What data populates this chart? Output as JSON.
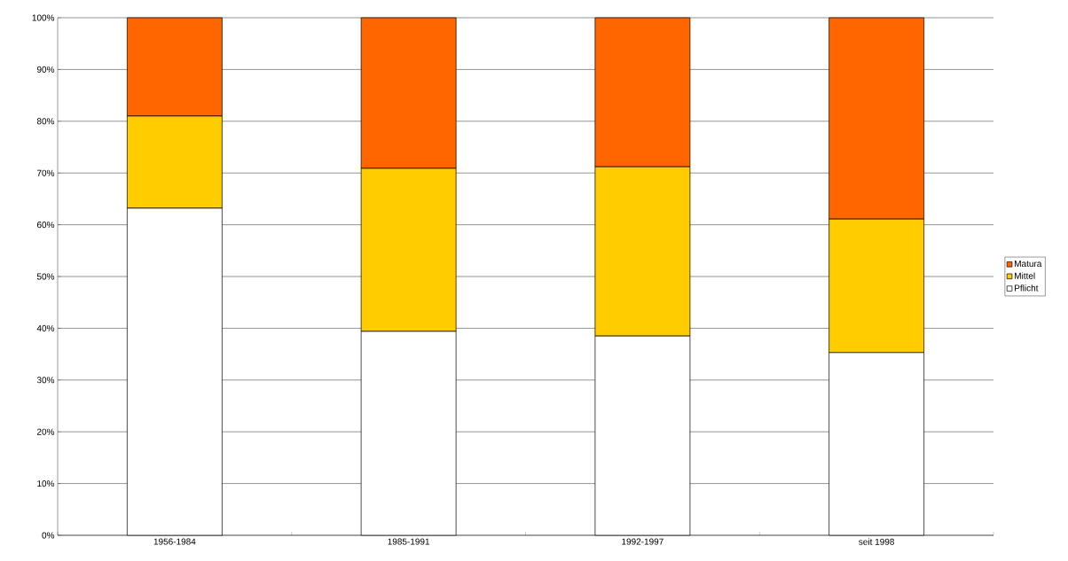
{
  "chart_data": {
    "type": "bar",
    "stacked": true,
    "categories": [
      "1956-1984",
      "1985-1991",
      "1992-1997",
      "seit 1998"
    ],
    "series": [
      {
        "name": "Pflicht",
        "color": "#ffffff",
        "values": [
          63.2,
          39.4,
          38.5,
          35.3
        ]
      },
      {
        "name": "Mittel",
        "color": "#ffcc00",
        "values": [
          17.8,
          31.5,
          32.7,
          25.8
        ]
      },
      {
        "name": "Matura",
        "color": "#ff6600",
        "values": [
          19.0,
          29.1,
          28.8,
          38.9
        ]
      }
    ],
    "ylim": [
      0,
      100
    ],
    "yticks": [
      {
        "value": 0,
        "label": "0%"
      },
      {
        "value": 10,
        "label": "10%"
      },
      {
        "value": 20,
        "label": "20%"
      },
      {
        "value": 30,
        "label": "30%"
      },
      {
        "value": 40,
        "label": "40%"
      },
      {
        "value": 50,
        "label": "50%"
      },
      {
        "value": 60,
        "label": "60%"
      },
      {
        "value": 70,
        "label": "70%"
      },
      {
        "value": 80,
        "label": "80%"
      },
      {
        "value": 90,
        "label": "90%"
      },
      {
        "value": 100,
        "label": "100%"
      }
    ],
    "grid": "y",
    "legend": "right"
  }
}
